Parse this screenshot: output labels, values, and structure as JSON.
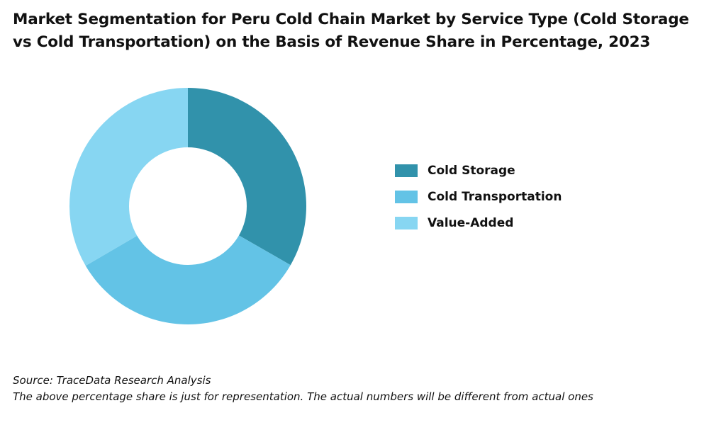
{
  "title": "Market Segmentation for Peru Cold Chain Market by Service Type (Cold Storage vs Cold Transportation) on the Basis of Revenue Share in Percentage, 2023",
  "chart_data": {
    "type": "pie",
    "variant": "donut",
    "title": "Market Segmentation for Peru Cold Chain Market by Service Type (Cold Storage vs Cold Transportation) on the Basis of Revenue Share in Percentage, 2023",
    "categories": [
      "Cold Storage",
      "Cold Transportation",
      "Value-Added"
    ],
    "values": [
      33.3,
      33.3,
      33.4
    ],
    "colors": [
      "#3192ab",
      "#63c3e6",
      "#87d6f2"
    ],
    "legend_position": "right"
  },
  "legend": {
    "items": [
      {
        "label": "Cold Storage",
        "color": "#3192ab"
      },
      {
        "label": "Cold Transportation",
        "color": "#63c3e6"
      },
      {
        "label": "Value-Added",
        "color": "#87d6f2"
      }
    ]
  },
  "footnotes": {
    "source": "Source: TraceData Research Analysis",
    "note": "The above percentage share is just for representation. The actual numbers will be different from actual ones"
  }
}
